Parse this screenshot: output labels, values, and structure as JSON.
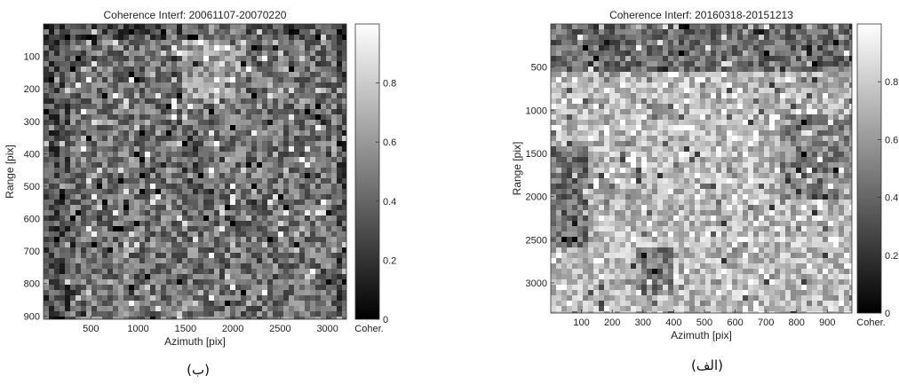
{
  "chart_data": [
    {
      "type": "heatmap",
      "title": "Coherence Interf: 20061107-20070220",
      "xlabel": "Azimuth [pix]",
      "ylabel": "Range [pix]",
      "xlim": [
        0,
        3200
      ],
      "ylim": [
        0,
        910
      ],
      "xticks": [
        500,
        1000,
        1500,
        2000,
        2500,
        3000
      ],
      "yticks": [
        100,
        200,
        300,
        400,
        500,
        600,
        700,
        800,
        900
      ],
      "colorbar": {
        "label": "Coher.",
        "range": [
          0,
          1
        ],
        "ticks": [
          0,
          0.2,
          0.4,
          0.6,
          0.8
        ],
        "colormap": "gray"
      },
      "caption": "(ب)"
    },
    {
      "type": "heatmap",
      "title": "Coherence Interf: 20160318-20151213",
      "xlabel": "Azimuth [pix]",
      "ylabel": "Range [pix]",
      "xlim": [
        0,
        980
      ],
      "ylim": [
        0,
        3350
      ],
      "xticks": [
        100,
        200,
        300,
        400,
        500,
        600,
        700,
        800,
        900
      ],
      "yticks": [
        500,
        1000,
        1500,
        2000,
        2500,
        3000
      ],
      "colorbar": {
        "label": "Coher.",
        "range": [
          0,
          1
        ],
        "ticks": [
          0,
          0.2,
          0.4,
          0.6,
          0.8
        ],
        "colormap": "gray"
      },
      "caption": "(الف)"
    }
  ]
}
